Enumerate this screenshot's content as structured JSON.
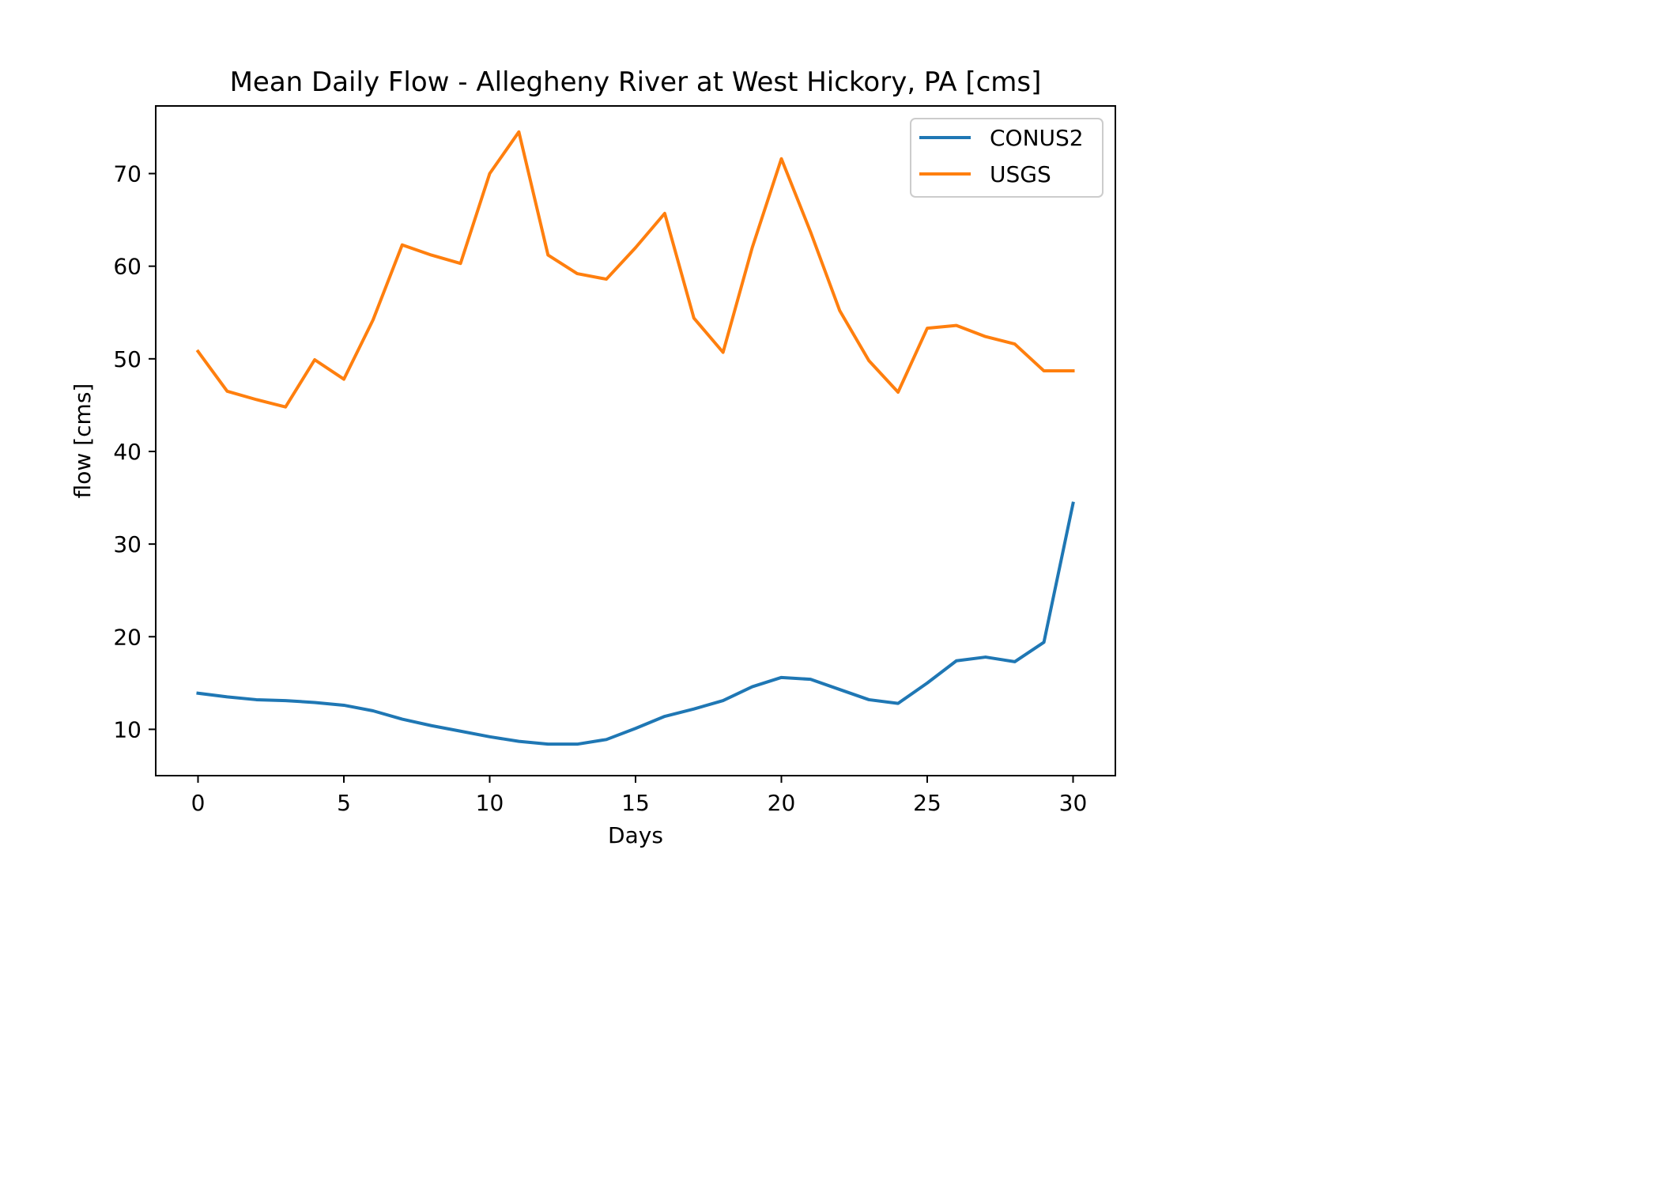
{
  "chart_data": {
    "type": "line",
    "title": "Mean Daily Flow - Allegheny River at West Hickory, PA [cms]",
    "xlabel": "Days",
    "ylabel": "flow [cms]",
    "xlim": [
      -1.45,
      31.45
    ],
    "ylim": [
      5.0,
      77.3
    ],
    "xticks": [
      0,
      5,
      10,
      15,
      20,
      25,
      30
    ],
    "yticks": [
      10,
      20,
      30,
      40,
      50,
      60,
      70
    ],
    "grid": false,
    "legend_position": "top-right",
    "x": [
      0,
      1,
      2,
      3,
      4,
      5,
      6,
      7,
      8,
      9,
      10,
      11,
      12,
      13,
      14,
      15,
      16,
      17,
      18,
      19,
      20,
      21,
      22,
      23,
      24,
      25,
      26,
      27,
      28,
      29,
      30
    ],
    "series": [
      {
        "name": "CONUS2",
        "color": "#1f77b4",
        "values": [
          13.9,
          13.5,
          13.2,
          13.1,
          12.9,
          12.6,
          12.0,
          11.1,
          10.4,
          9.8,
          9.2,
          8.7,
          8.4,
          8.4,
          8.9,
          10.1,
          11.4,
          12.2,
          13.1,
          14.6,
          15.6,
          15.4,
          14.3,
          13.2,
          12.8,
          15.0,
          17.4,
          17.8,
          17.3,
          19.4,
          34.4
        ]
      },
      {
        "name": "USGS",
        "color": "#ff7f0e",
        "values": [
          50.8,
          46.5,
          45.6,
          44.8,
          49.9,
          47.8,
          54.2,
          62.3,
          61.2,
          60.3,
          70.0,
          74.5,
          61.2,
          59.2,
          58.6,
          62.0,
          65.7,
          54.4,
          50.7,
          62.0,
          71.6,
          63.7,
          55.2,
          49.8,
          46.4,
          53.3,
          53.6,
          52.4,
          51.6,
          48.7,
          48.7
        ]
      }
    ]
  }
}
